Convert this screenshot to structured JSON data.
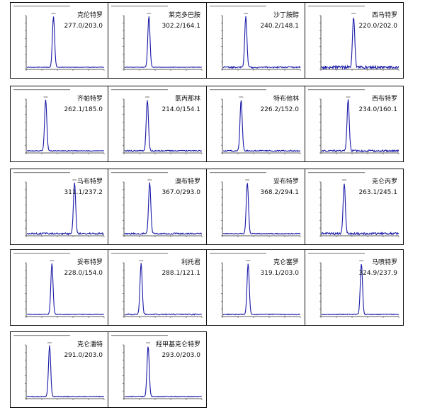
{
  "chart_data": [
    {
      "type": "line",
      "compound": "克伦特罗",
      "transition": "277.0/203.0",
      "peak_rt": 0.35,
      "baseline_noise": 0.02
    },
    {
      "type": "line",
      "compound": "莱克多巴胺",
      "transition": "302.2/164.1",
      "peak_rt": 0.32,
      "baseline_noise": 0.02
    },
    {
      "type": "line",
      "compound": "沙丁胺醇",
      "transition": "240.2/148.1",
      "peak_rt": 0.3,
      "baseline_noise": 0.05
    },
    {
      "type": "line",
      "compound": "西马特罗",
      "transition": "220.0/202.0",
      "peak_rt": 0.42,
      "baseline_noise": 0.1
    },
    {
      "type": "line",
      "compound": "齐帕特罗",
      "transition": "262.1/185.0",
      "peak_rt": 0.25,
      "baseline_noise": 0.02
    },
    {
      "type": "line",
      "compound": "氯丙那林",
      "transition": "214.0/154.1",
      "peak_rt": 0.3,
      "baseline_noise": 0.04
    },
    {
      "type": "line",
      "compound": "特布他林",
      "transition": "226.2/152.0",
      "peak_rt": 0.24,
      "baseline_noise": 0.04
    },
    {
      "type": "line",
      "compound": "西布特罗",
      "transition": "234.0/160.1",
      "peak_rt": 0.35,
      "baseline_noise": 0.06
    },
    {
      "type": "line",
      "compound": "马布特罗",
      "transition": "311.1/237.2",
      "peak_rt": 0.62,
      "baseline_noise": 0.06
    },
    {
      "type": "line",
      "compound": "溴布特罗",
      "transition": "367.0/293.0",
      "peak_rt": 0.33,
      "baseline_noise": 0.05
    },
    {
      "type": "line",
      "compound": "妥布特罗",
      "transition": "368.2/294.1",
      "peak_rt": 0.32,
      "baseline_noise": 0.03
    },
    {
      "type": "line",
      "compound": "克仑丙罗",
      "transition": "263.1/245.1",
      "peak_rt": 0.3,
      "baseline_noise": 0.08
    },
    {
      "type": "line",
      "compound": "妥布特罗",
      "transition": "228.0/154.0",
      "peak_rt": 0.33,
      "baseline_noise": 0.02
    },
    {
      "type": "line",
      "compound": "利托君",
      "transition": "288.1/121.1",
      "peak_rt": 0.22,
      "baseline_noise": 0.04
    },
    {
      "type": "line",
      "compound": "克仑塞罗",
      "transition": "319.1/203.0",
      "peak_rt": 0.33,
      "baseline_noise": 0.03
    },
    {
      "type": "line",
      "compound": "马喷特罗",
      "transition": "324.9/237.9",
      "peak_rt": 0.52,
      "baseline_noise": 0.03
    },
    {
      "type": "line",
      "compound": "克仑潘特",
      "transition": "291.0/203.0",
      "peak_rt": 0.3,
      "baseline_noise": 0.03
    },
    {
      "type": "line",
      "compound": "羟甲基克仑特罗",
      "transition": "293.0/203.0",
      "peak_rt": 0.31,
      "baseline_noise": 0.03
    }
  ]
}
